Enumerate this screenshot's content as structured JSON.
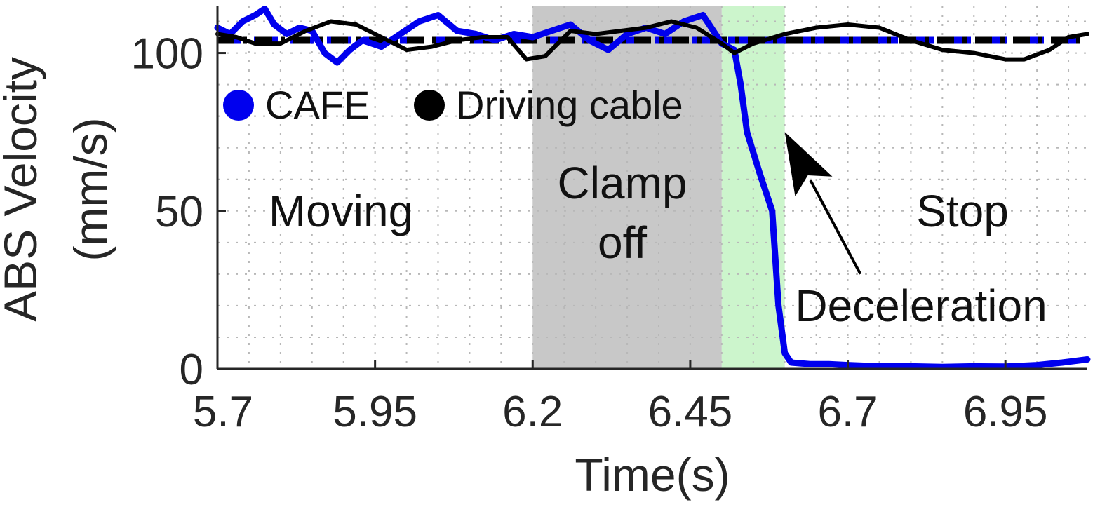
{
  "chart_data": {
    "type": "line",
    "xlabel": "Time(s)",
    "ylabel_lines": [
      "ABS Velocity",
      "(mm/s)"
    ],
    "xlim": [
      5.7,
      7.08
    ],
    "ylim": [
      0,
      115
    ],
    "xticks": [
      "5.7",
      "5.95",
      "6.2",
      "6.45",
      "6.7",
      "6.95"
    ],
    "yticks": [
      "0",
      "50",
      "100"
    ],
    "grid": true,
    "legend_placement": "upper-left",
    "legend": [
      {
        "label": "CAFE",
        "color": "#0000ee"
      },
      {
        "label": "Driving cable",
        "color": "#000000"
      }
    ],
    "regions": [
      {
        "label_lines": [
          "Clamp",
          "off"
        ],
        "x_range": [
          6.2,
          6.5
        ],
        "color": "#c8c8c8"
      },
      {
        "label_lines": [],
        "x_range": [
          6.5,
          6.6
        ],
        "color": "#ccf5cc"
      }
    ],
    "region_labels": {
      "moving": "Moving",
      "clamp_line1": "Clamp",
      "clamp_line2": "off",
      "stop": "Stop"
    },
    "annotation": {
      "text": "Deceleration",
      "arrow_from": [
        6.72,
        30
      ],
      "arrow_to": [
        6.6,
        75
      ]
    },
    "reference_lines": [
      {
        "series": "CAFE",
        "y": 104,
        "style": "dashed",
        "color": "#0000ee"
      },
      {
        "series": "Driving cable",
        "y": 104,
        "style": "dash-dot",
        "color": "#000000"
      }
    ],
    "series": [
      {
        "name": "CAFE",
        "color": "#0000ee",
        "x": [
          5.7,
          5.72,
          5.74,
          5.76,
          5.775,
          5.79,
          5.81,
          5.83,
          5.85,
          5.87,
          5.89,
          5.91,
          5.93,
          5.96,
          5.99,
          6.02,
          6.05,
          6.08,
          6.11,
          6.14,
          6.17,
          6.2,
          6.23,
          6.26,
          6.29,
          6.32,
          6.35,
          6.38,
          6.41,
          6.44,
          6.47,
          6.49,
          6.5,
          6.52,
          6.53,
          6.54,
          6.56,
          6.58,
          6.59,
          6.6,
          6.61,
          6.64,
          6.67,
          6.7,
          6.75,
          6.8,
          6.85,
          6.9,
          6.95,
          7.0,
          7.04,
          7.08
        ],
        "y": [
          108,
          106,
          110,
          112,
          114,
          109,
          106,
          108,
          107,
          100,
          97,
          101,
          104,
          102,
          106,
          110,
          112,
          107,
          106,
          104,
          106,
          105,
          107,
          109,
          104,
          101,
          106,
          108,
          106,
          110,
          112,
          106,
          103,
          101,
          90,
          75,
          62,
          50,
          20,
          5,
          2,
          1.5,
          1.5,
          1.2,
          0.8,
          0.8,
          0.6,
          0.8,
          0.7,
          1.2,
          2.0,
          3.0
        ]
      },
      {
        "name": "Driving cable",
        "color": "#000000",
        "x": [
          5.7,
          5.73,
          5.76,
          5.8,
          5.84,
          5.88,
          5.92,
          5.96,
          6.0,
          6.04,
          6.08,
          6.12,
          6.16,
          6.19,
          6.22,
          6.26,
          6.3,
          6.34,
          6.38,
          6.42,
          6.46,
          6.5,
          6.52,
          6.55,
          6.6,
          6.65,
          6.7,
          6.75,
          6.8,
          6.85,
          6.9,
          6.95,
          6.98,
          7.02,
          7.05,
          7.08
        ],
        "y": [
          106,
          105,
          103,
          103,
          107,
          110,
          109,
          105,
          101,
          102,
          104,
          105,
          105,
          98,
          99,
          107,
          106,
          107,
          108,
          110,
          108,
          103,
          100,
          103,
          106,
          108,
          109,
          108,
          104,
          101,
          100,
          98,
          98,
          101,
          105,
          106
        ]
      }
    ]
  }
}
